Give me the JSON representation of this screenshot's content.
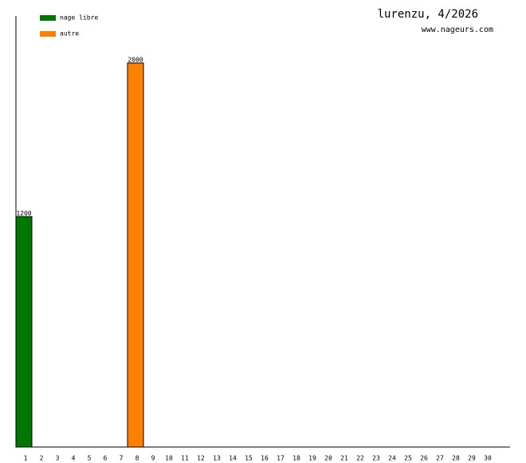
{
  "chart_data": {
    "type": "bar",
    "stacked": true,
    "title": "lurenzu, 4/2026",
    "subtitle": "www.nageurs.com",
    "categories": [
      "1",
      "2",
      "3",
      "4",
      "5",
      "6",
      "7",
      "8",
      "9",
      "10",
      "11",
      "12",
      "13",
      "14",
      "15",
      "16",
      "17",
      "18",
      "19",
      "20",
      "21",
      "22",
      "23",
      "24",
      "25",
      "26",
      "27",
      "28",
      "29",
      "30"
    ],
    "series": [
      {
        "name": "nage libre",
        "color": "#007700",
        "values": [
          1200,
          null,
          null,
          null,
          null,
          null,
          null,
          null,
          null,
          null,
          null,
          null,
          null,
          null,
          null,
          null,
          null,
          null,
          null,
          null,
          null,
          null,
          null,
          null,
          null,
          null,
          null,
          null,
          null,
          null
        ]
      },
      {
        "name": "autre",
        "color": "#ff7f00",
        "values": [
          null,
          null,
          null,
          null,
          null,
          null,
          null,
          2000,
          null,
          null,
          null,
          null,
          null,
          null,
          null,
          null,
          null,
          null,
          null,
          null,
          null,
          null,
          null,
          null,
          null,
          null,
          null,
          null,
          null,
          null
        ]
      }
    ],
    "ylim": [
      0,
      2245
    ],
    "legend": "upper-left"
  }
}
